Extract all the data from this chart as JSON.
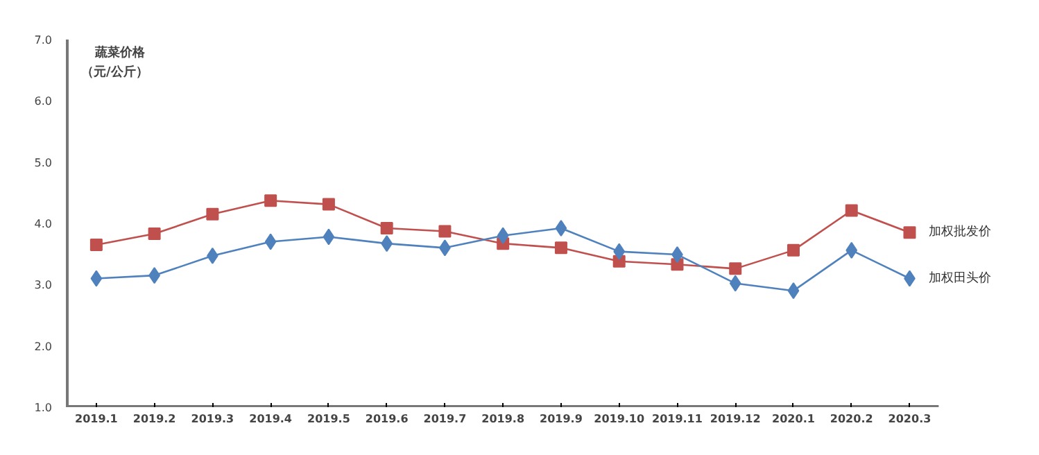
{
  "chart_data": {
    "type": "line",
    "title": "蔬菜价格",
    "subtitle": "（元/公斤）",
    "categories": [
      "2019.1",
      "2019.2",
      "2019.3",
      "2019.4",
      "2019.5",
      "2019.6",
      "2019.7",
      "2019.8",
      "2019.9",
      "2019.10",
      "2019.11",
      "2019.12",
      "2020.1",
      "2020.2",
      "2020.3"
    ],
    "series": [
      {
        "name": "加权批发价",
        "color": "#c0504d",
        "marker": "square",
        "values": [
          3.65,
          3.83,
          4.15,
          4.37,
          4.31,
          3.92,
          3.87,
          3.67,
          3.6,
          3.38,
          3.33,
          3.26,
          3.56,
          4.21,
          3.85
        ]
      },
      {
        "name": "加权田头价",
        "color": "#4f81bd",
        "marker": "diamond",
        "values": [
          3.1,
          3.15,
          3.47,
          3.7,
          3.78,
          3.67,
          3.6,
          3.8,
          3.92,
          3.54,
          3.49,
          3.02,
          2.9,
          3.56,
          3.1
        ]
      }
    ],
    "ylim": [
      1,
      7
    ],
    "yticks": [
      {
        "value": 1,
        "label": "1.0"
      },
      {
        "value": 2,
        "label": "2.0"
      },
      {
        "value": 3,
        "label": "3.0"
      },
      {
        "value": 4,
        "label": "4.0"
      },
      {
        "value": 5,
        "label": "5.0"
      },
      {
        "value": 6,
        "label": "6.0"
      },
      {
        "value": 7,
        "label": "7.0"
      }
    ],
    "grid": false,
    "line_style": "solid"
  }
}
